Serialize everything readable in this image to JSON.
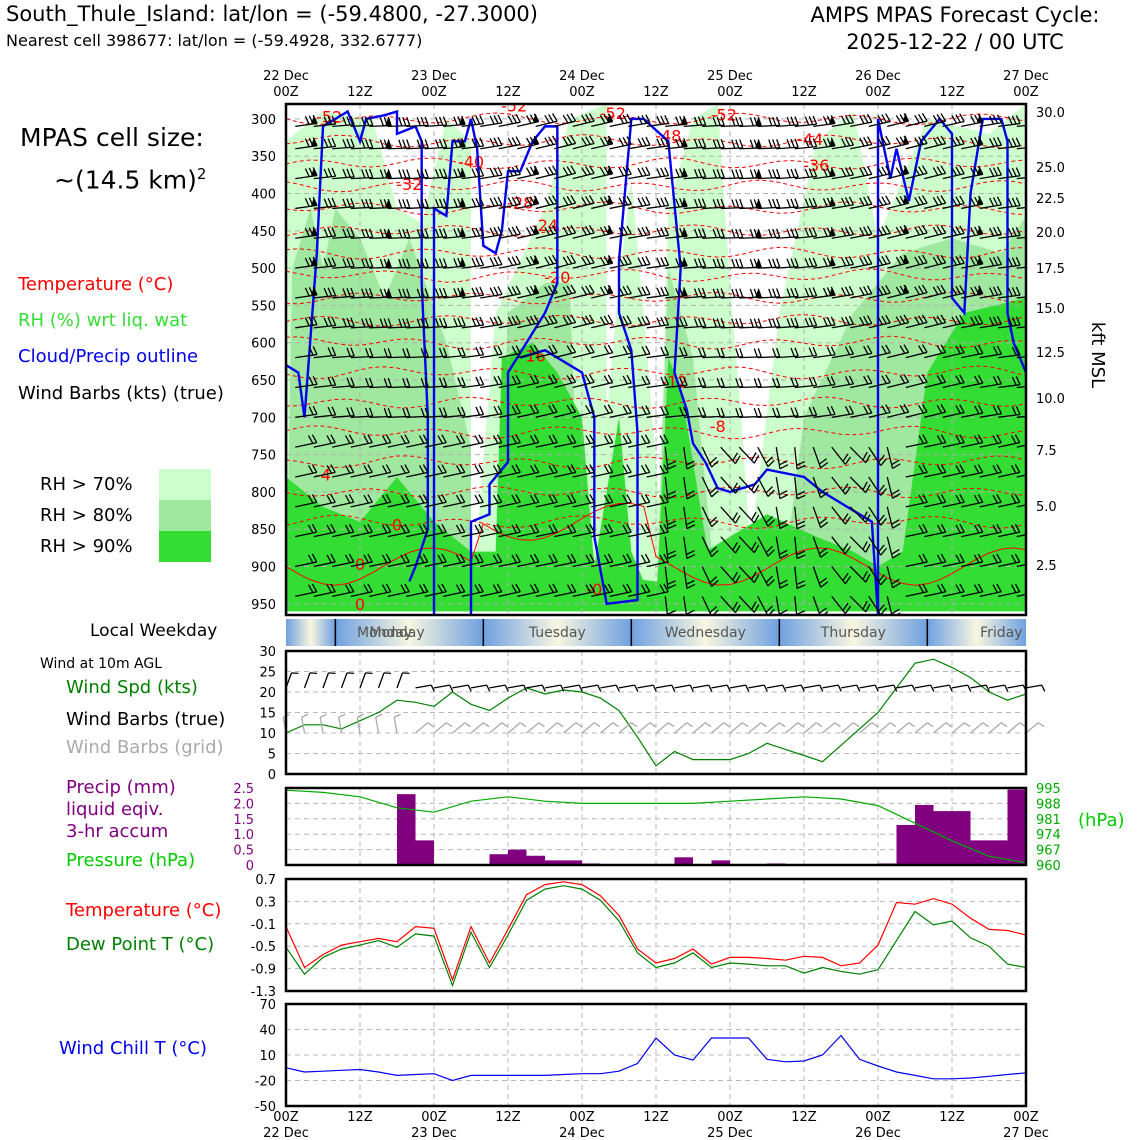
{
  "header": {
    "title_left": "South_Thule_Island: lat/lon = (-59.4800, -27.3000)",
    "subtitle_left": "Nearest cell 398677: lat/lon = (-59.4928, 332.6777)",
    "title_right_line1": "AMPS MPAS Forecast Cycle:",
    "title_right_line2": "2025-12-22 / 00 UTC"
  },
  "cell_size": {
    "line1": "MPAS cell size:",
    "line2": "~(14.5 km)",
    "sup": "2"
  },
  "legend": {
    "temperature": "Temperature (°C)",
    "rh": "RH (%) wrt liq. wat",
    "cloud": "Cloud/Precip outline",
    "wind": "Wind Barbs (kts) (true)",
    "rh70": "RH > 70%",
    "rh80": "RH > 80%",
    "rh90": "RH > 90%",
    "colors": {
      "rh70": "#ccffcc",
      "rh80": "#a0e8a0",
      "rh90": "#33dd33",
      "temp": "#ff0000",
      "cloud": "#0000ee"
    }
  },
  "panel_labels": {
    "local_weekday": "Local Weekday",
    "wind_10m": "Wind at 10m AGL",
    "wind_spd": "Wind Spd (kts)",
    "barbs_true": "Wind Barbs (true)",
    "barbs_grid": "Wind Barbs (grid)",
    "precip1": "Precip (mm)",
    "precip2": "liquid eqiv.",
    "precip3": "3-hr accum",
    "pressure": "Pressure (hPa)",
    "pressure_unit": "(hPa)",
    "temp": "Temperature (°C)",
    "dewpt": "Dew Point T (°C)",
    "windchill": "Wind Chill T (°C)",
    "kft": "kft MSL"
  },
  "time_axis": {
    "top_dates": [
      "22 Dec",
      "",
      "23 Dec",
      "",
      "24 Dec",
      "",
      "25 Dec",
      "",
      "26 Dec",
      "",
      "27 Dec"
    ],
    "hours": [
      "00Z",
      "12Z",
      "00Z",
      "12Z",
      "00Z",
      "12Z",
      "00Z",
      "12Z",
      "00Z",
      "12Z",
      "00Z"
    ]
  },
  "weekdays": [
    "Monday",
    "Tuesday",
    "Wednesday",
    "Thursday",
    "Friday"
  ],
  "chart_data": [
    {
      "type": "time-height cross section",
      "y_ticks_hPa": [
        300,
        350,
        400,
        450,
        500,
        550,
        600,
        650,
        700,
        750,
        800,
        850,
        900,
        950
      ],
      "y_ticks_kft": [
        "30.0",
        "25.0",
        "22.5",
        "20.0",
        "17.5",
        "15.0",
        "12.5",
        "10.0",
        "7.5",
        "5.0",
        "2.5"
      ],
      "temperature_contour_labels": [
        "-52",
        "-52",
        "-52",
        "-52",
        "-48",
        "-44",
        "-40",
        "-36",
        "-32",
        "-28",
        "-24",
        "-20",
        "-16",
        "-12",
        "-8",
        "-4",
        "0",
        "0",
        "0",
        "-0"
      ]
    },
    {
      "type": "line",
      "title": "Wind Spd (kts)",
      "x_hours": [
        0,
        3,
        6,
        9,
        12,
        15,
        18,
        21,
        24,
        27,
        30,
        33,
        36,
        39,
        42,
        45,
        48,
        51,
        54,
        57,
        60,
        63,
        66,
        69,
        72,
        75,
        78,
        81,
        84,
        87,
        90,
        93,
        96,
        99,
        102,
        105,
        108,
        111,
        114,
        117,
        120
      ],
      "values": [
        10,
        12,
        12,
        11,
        13,
        15,
        18,
        17.5,
        16.5,
        20,
        17,
        15.5,
        18.5,
        21,
        19.5,
        20.5,
        20,
        18.5,
        15.5,
        9,
        2,
        5.5,
        3.5,
        3.5,
        3.5,
        5,
        7.5,
        6,
        4.5,
        3,
        7,
        11,
        15,
        21,
        27,
        28,
        26,
        23.5,
        20,
        18,
        19.5
      ],
      "ylim": [
        0,
        30
      ],
      "yticks": [
        0,
        5,
        10,
        15,
        20,
        25,
        30
      ]
    },
    {
      "type": "bar+line",
      "title": "Precip (mm) / Pressure (hPa)",
      "precip_x_hours": [
        18,
        21,
        33,
        36,
        39,
        42,
        45,
        48,
        63,
        69,
        78,
        96,
        99,
        102,
        105,
        108,
        111,
        114,
        117
      ],
      "precip_values": [
        2.3,
        0.8,
        0.35,
        0.5,
        0.3,
        0.15,
        0.15,
        0.05,
        0.25,
        0.15,
        0.05,
        0.05,
        1.3,
        1.95,
        1.75,
        1.75,
        0.8,
        0.8,
        2.45
      ],
      "precip_ylim": [
        0,
        2.5
      ],
      "precip_yticks": [
        "0",
        "0.5",
        "1.0",
        "1.5",
        "2.0",
        "2.5"
      ],
      "pressure_x_hours": [
        0,
        6,
        12,
        18,
        24,
        30,
        36,
        42,
        48,
        54,
        60,
        66,
        72,
        78,
        84,
        90,
        96,
        102,
        108,
        114,
        120
      ],
      "pressure_values": [
        994,
        993,
        991,
        986,
        984,
        989,
        991,
        989,
        988,
        988,
        988,
        988,
        989,
        990,
        991,
        990,
        987,
        979,
        971,
        964,
        961
      ],
      "pressure_ylim": [
        960,
        995
      ],
      "pressure_yticks": [
        "995",
        "988",
        "981",
        "974",
        "967",
        "960"
      ]
    },
    {
      "type": "line",
      "title": "Temperature / Dew Point (°C)",
      "x_hours": [
        0,
        3,
        6,
        9,
        12,
        15,
        18,
        21,
        24,
        27,
        30,
        33,
        36,
        39,
        42,
        45,
        48,
        51,
        54,
        57,
        60,
        63,
        66,
        69,
        72,
        75,
        78,
        81,
        84,
        87,
        90,
        93,
        96,
        99,
        102,
        105,
        108,
        111,
        114,
        117,
        120
      ],
      "temperature": [
        -0.15,
        -0.88,
        -0.65,
        -0.48,
        -0.42,
        -0.36,
        -0.42,
        -0.15,
        -0.18,
        -1.1,
        -0.15,
        -0.8,
        -0.2,
        0.42,
        0.6,
        0.65,
        0.6,
        0.4,
        0.05,
        -0.55,
        -0.8,
        -0.72,
        -0.55,
        -0.82,
        -0.7,
        -0.7,
        -0.72,
        -0.75,
        -0.68,
        -0.7,
        -0.85,
        -0.8,
        -0.48,
        0.28,
        0.25,
        0.35,
        0.25,
        0.0,
        -0.2,
        -0.22,
        -0.3
      ],
      "dewpoint": [
        -0.52,
        -1.0,
        -0.7,
        -0.55,
        -0.48,
        -0.4,
        -0.52,
        -0.28,
        -0.32,
        -1.2,
        -0.25,
        -0.88,
        -0.3,
        0.32,
        0.52,
        0.58,
        0.52,
        0.32,
        -0.05,
        -0.62,
        -0.88,
        -0.8,
        -0.62,
        -0.88,
        -0.8,
        -0.82,
        -0.85,
        -0.85,
        -0.98,
        -0.88,
        -0.95,
        -1.0,
        -0.92,
        -0.4,
        0.12,
        -0.12,
        -0.05,
        -0.35,
        -0.5,
        -0.82,
        -0.88
      ],
      "ylim": [
        -1.3,
        0.7
      ],
      "yticks": [
        "0.7",
        "0.3",
        "-0.1",
        "-0.5",
        "-0.9",
        "-1.3"
      ]
    },
    {
      "type": "line",
      "title": "Wind Chill T (°C)",
      "x_hours": [
        0,
        3,
        6,
        9,
        12,
        15,
        18,
        21,
        24,
        27,
        30,
        33,
        36,
        39,
        42,
        45,
        48,
        51,
        54,
        57,
        60,
        63,
        66,
        69,
        72,
        75,
        78,
        81,
        84,
        87,
        90,
        93,
        96,
        99,
        102,
        105,
        108,
        111,
        114,
        117,
        120
      ],
      "values": [
        -5,
        -10,
        -9,
        -8,
        -7,
        -10,
        -14,
        -13,
        -12,
        -20,
        -14,
        -14,
        -14,
        -14,
        -14,
        -13,
        -12,
        -12,
        -9,
        0,
        30,
        10,
        4,
        30,
        30,
        30,
        5,
        2,
        3,
        10,
        33,
        5,
        -3,
        -10,
        -14,
        -18,
        -18,
        -17,
        -15,
        -13,
        -11
      ],
      "ylim": [
        -50,
        70
      ],
      "yticks": [
        "70",
        "40",
        "10",
        "-20",
        "-50"
      ]
    }
  ]
}
